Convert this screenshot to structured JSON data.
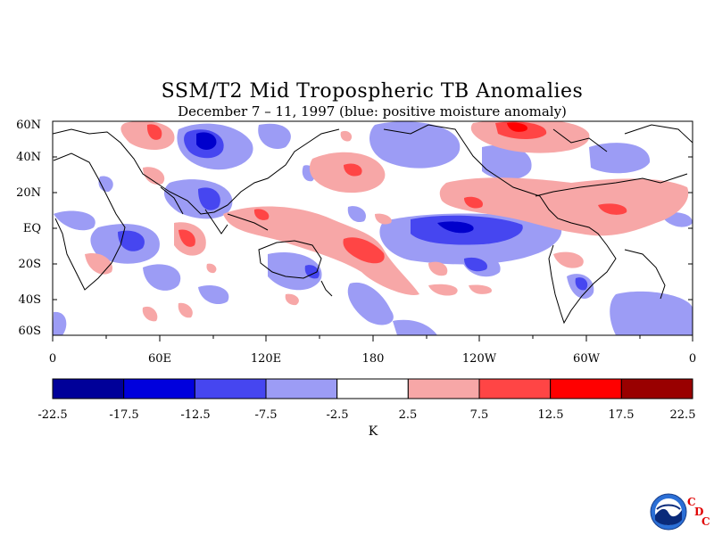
{
  "title": "SSM/T2 Mid Tropospheric TB Anomalies",
  "subtitle": "December 7 – 11, 1997 (blue: positive moisture anomaly)",
  "latitude_labels": [
    "60N",
    "40N",
    "20N",
    "EQ",
    "20S",
    "40S",
    "60S"
  ],
  "longitude_labels": [
    "0",
    "60E",
    "120E",
    "180",
    "120W",
    "60W",
    "0"
  ],
  "colorbar": {
    "labels": [
      "-22.5",
      "-17.5",
      "-12.5",
      "-7.5",
      "-2.5",
      "2.5",
      "7.5",
      "12.5",
      "17.5",
      "22.5"
    ],
    "colors": [
      "#000099",
      "#0000dd",
      "#4646f0",
      "#9c9cf5",
      "#ffffff",
      "#f7a7a7",
      "#ff4545",
      "#ff0000",
      "#990000"
    ],
    "units": "K"
  },
  "logo": {
    "name": "NOAA",
    "org_letters": [
      "C",
      "D",
      "C"
    ]
  },
  "map_colors": {
    "strong_neg": "#0000cc",
    "mid_neg": "#4646f0",
    "weak_neg": "#9c9cf5",
    "weak_pos": "#f7a7a7",
    "mid_pos": "#ff4545",
    "strong_pos": "#ff0000"
  }
}
